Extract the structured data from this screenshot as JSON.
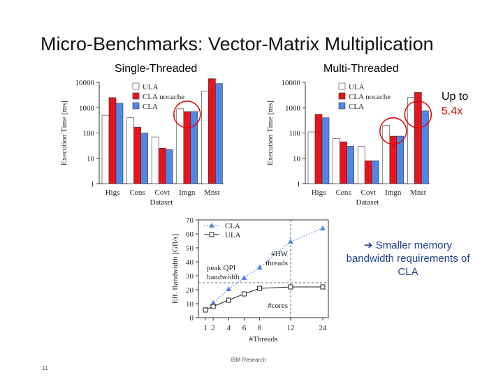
{
  "slide": {
    "title": "Micro-Benchmarks: Vector-Matrix Multiplication",
    "footer": "IBM Research",
    "page_number": "11",
    "callout_arrow": "➔",
    "callout_text": "Smaller memory bandwidth requirements of CLA",
    "upto_label": "Up to",
    "upto_value": "5.4x",
    "colors": {
      "ula": "#ffffff",
      "cla_nocache": "#e8131b",
      "cla": "#4f86e8",
      "highlight": "#e00000",
      "callout": "#1f3f8f"
    }
  },
  "chart_data": [
    {
      "type": "bar",
      "title": "Single-Threaded",
      "xlabel": "Dataset",
      "ylabel": "Execution Time [ms]",
      "yscale": "log",
      "ylim": [
        1,
        10000
      ],
      "yticks": [
        "1",
        "10",
        "100",
        "1000",
        "10000"
      ],
      "categories": [
        "Higs",
        "Cens",
        "Covt",
        "Imgn",
        "Mnst"
      ],
      "legend_position": "top-left",
      "series": [
        {
          "name": "ULA",
          "color": "#ffffff",
          "values": [
            500,
            400,
            70,
            900,
            4500
          ]
        },
        {
          "name": "CLA nocache",
          "color": "#e8131b",
          "values": [
            2500,
            170,
            25,
            700,
            14000
          ]
        },
        {
          "name": "CLA",
          "color": "#4f86e8",
          "values": [
            1500,
            100,
            22,
            700,
            9000
          ]
        }
      ],
      "highlight_category": "Imgn"
    },
    {
      "type": "bar",
      "title": "Multi-Threaded",
      "xlabel": "Dataset",
      "ylabel": "Execution Time [ms]",
      "yscale": "log",
      "ylim": [
        1,
        10000
      ],
      "yticks": [
        "1",
        "10",
        "100",
        "1000",
        "10000"
      ],
      "categories": [
        "Higs",
        "Cens",
        "Covt",
        "Imgn",
        "Mnst"
      ],
      "legend_position": "top-left",
      "series": [
        {
          "name": "ULA",
          "color": "#ffffff",
          "values": [
            110,
            60,
            30,
            200,
            2500
          ]
        },
        {
          "name": "CLA nocache",
          "color": "#e8131b",
          "values": [
            550,
            45,
            8,
            75,
            4000
          ]
        },
        {
          "name": "CLA",
          "color": "#4f86e8",
          "values": [
            400,
            30,
            8,
            75,
            750
          ]
        }
      ],
      "highlight_categories": [
        "Imgn",
        "Mnst"
      ]
    },
    {
      "type": "line",
      "xlabel": "#Threads",
      "ylabel": "Eff. Bandwidth [GB/s]",
      "x": [
        1,
        2,
        4,
        6,
        8,
        12,
        24
      ],
      "xticks": [
        "1",
        "2",
        "4",
        "6",
        "8",
        "12",
        "24"
      ],
      "ylim": [
        0,
        70
      ],
      "yticks": [
        "0",
        "10",
        "20",
        "30",
        "40",
        "50",
        "60",
        "70"
      ],
      "legend_position": "top-left",
      "series": [
        {
          "name": "CLA",
          "marker": "triangle",
          "color": "#4f86e8",
          "values": [
            6,
            10.5,
            20.5,
            28.5,
            36,
            54.5,
            64
          ]
        },
        {
          "name": "ULA",
          "marker": "square",
          "color": "#222222",
          "values": [
            5.5,
            8,
            12.5,
            17,
            21,
            22,
            22
          ]
        }
      ],
      "reference_line": {
        "label": "peak QPI bandwidth",
        "y": 25
      },
      "annotations": [
        "#HW threads",
        "#cores"
      ]
    }
  ]
}
